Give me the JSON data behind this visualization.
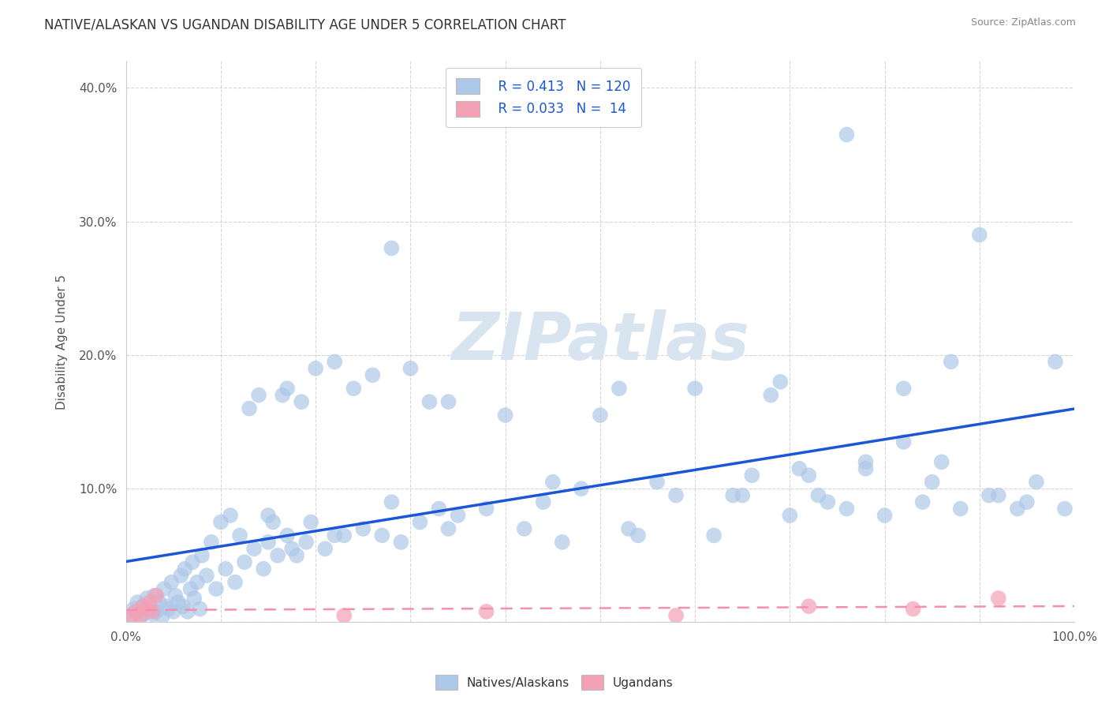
{
  "title": "NATIVE/ALASKAN VS UGANDAN DISABILITY AGE UNDER 5 CORRELATION CHART",
  "source": "Source: ZipAtlas.com",
  "ylabel": "Disability Age Under 5",
  "xlim": [
    0.0,
    1.0
  ],
  "ylim": [
    0.0,
    0.42
  ],
  "x_ticks": [
    0.0,
    0.1,
    0.2,
    0.3,
    0.4,
    0.5,
    0.6,
    0.7,
    0.8,
    0.9,
    1.0
  ],
  "y_ticks": [
    0.0,
    0.1,
    0.2,
    0.3,
    0.4
  ],
  "x_tick_labels": [
    "0.0%",
    "",
    "",
    "",
    "",
    "",
    "",
    "",
    "",
    "",
    "100.0%"
  ],
  "y_tick_labels": [
    "",
    "10.0%",
    "20.0%",
    "30.0%",
    "40.0%"
  ],
  "legend_r1": "R = 0.413",
  "legend_n1": "N = 120",
  "legend_r2": "R = 0.033",
  "legend_n2": "N =  14",
  "blue_color": "#adc8e8",
  "pink_color": "#f4a0b5",
  "line_blue": "#1a56d6",
  "line_pink": "#f48fb1",
  "title_color": "#333333",
  "watermark_color": "#d8e4f0",
  "native_x": [
    0.005,
    0.008,
    0.01,
    0.012,
    0.015,
    0.018,
    0.02,
    0.022,
    0.025,
    0.028,
    0.03,
    0.032,
    0.035,
    0.038,
    0.04,
    0.042,
    0.045,
    0.048,
    0.05,
    0.052,
    0.055,
    0.058,
    0.06,
    0.062,
    0.065,
    0.068,
    0.07,
    0.072,
    0.075,
    0.078,
    0.08,
    0.085,
    0.09,
    0.095,
    0.1,
    0.105,
    0.11,
    0.115,
    0.12,
    0.125,
    0.13,
    0.135,
    0.14,
    0.145,
    0.15,
    0.155,
    0.16,
    0.165,
    0.17,
    0.175,
    0.18,
    0.185,
    0.19,
    0.195,
    0.2,
    0.21,
    0.22,
    0.23,
    0.24,
    0.25,
    0.26,
    0.27,
    0.28,
    0.29,
    0.3,
    0.31,
    0.32,
    0.33,
    0.34,
    0.35,
    0.4,
    0.42,
    0.44,
    0.46,
    0.48,
    0.5,
    0.52,
    0.54,
    0.56,
    0.58,
    0.6,
    0.62,
    0.64,
    0.66,
    0.68,
    0.7,
    0.72,
    0.74,
    0.76,
    0.78,
    0.8,
    0.82,
    0.84,
    0.86,
    0.88,
    0.9,
    0.92,
    0.94,
    0.96,
    0.98,
    0.53,
    0.65,
    0.71,
    0.15,
    0.22,
    0.34,
    0.17,
    0.28,
    0.38,
    0.45,
    0.82,
    0.76,
    0.69,
    0.73,
    0.87,
    0.95,
    0.99,
    0.85,
    0.78,
    0.91
  ],
  "native_y": [
    0.005,
    0.01,
    0.008,
    0.015,
    0.003,
    0.012,
    0.007,
    0.018,
    0.01,
    0.006,
    0.02,
    0.008,
    0.015,
    0.004,
    0.025,
    0.012,
    0.01,
    0.03,
    0.008,
    0.02,
    0.015,
    0.035,
    0.012,
    0.04,
    0.008,
    0.025,
    0.045,
    0.018,
    0.03,
    0.01,
    0.05,
    0.035,
    0.06,
    0.025,
    0.075,
    0.04,
    0.08,
    0.03,
    0.065,
    0.045,
    0.16,
    0.055,
    0.17,
    0.04,
    0.06,
    0.075,
    0.05,
    0.17,
    0.065,
    0.055,
    0.05,
    0.165,
    0.06,
    0.075,
    0.19,
    0.055,
    0.195,
    0.065,
    0.175,
    0.07,
    0.185,
    0.065,
    0.28,
    0.06,
    0.19,
    0.075,
    0.165,
    0.085,
    0.07,
    0.08,
    0.155,
    0.07,
    0.09,
    0.06,
    0.1,
    0.155,
    0.175,
    0.065,
    0.105,
    0.095,
    0.175,
    0.065,
    0.095,
    0.11,
    0.17,
    0.08,
    0.11,
    0.09,
    0.365,
    0.115,
    0.08,
    0.135,
    0.09,
    0.12,
    0.085,
    0.29,
    0.095,
    0.085,
    0.105,
    0.195,
    0.07,
    0.095,
    0.115,
    0.08,
    0.065,
    0.165,
    0.175,
    0.09,
    0.085,
    0.105,
    0.175,
    0.085,
    0.18,
    0.095,
    0.195,
    0.09,
    0.085,
    0.105,
    0.12,
    0.095
  ],
  "ugandan_x": [
    0.005,
    0.01,
    0.015,
    0.018,
    0.022,
    0.025,
    0.028,
    0.032,
    0.23,
    0.38,
    0.58,
    0.72,
    0.83,
    0.92
  ],
  "ugandan_y": [
    0.003,
    0.008,
    0.005,
    0.012,
    0.01,
    0.015,
    0.008,
    0.02,
    0.005,
    0.008,
    0.005,
    0.012,
    0.01,
    0.018
  ]
}
